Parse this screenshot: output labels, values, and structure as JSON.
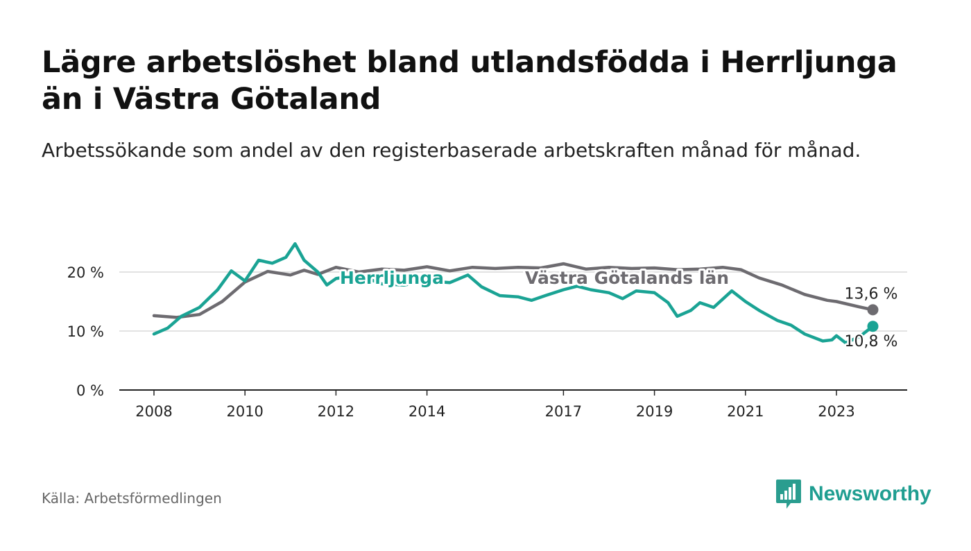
{
  "title": "Lägre arbetslöshet bland utlandsfödda i Herrljunga än i Västra Götaland",
  "subtitle": "Arbetssökande som andel av den registerbaserade arbetskraften månad för månad.",
  "source": "Källa: Arbetsförmedlingen",
  "brand": {
    "name": "Newsworthy",
    "icon": "newsworthy-logo-icon",
    "color": "#2a9d8f"
  },
  "colors": {
    "herrljunga": "#1aa394",
    "vastra": "#6d6b70",
    "grid": "#d9d9d9",
    "axis": "#222222"
  },
  "chart_data": {
    "type": "line",
    "title": "Lägre arbetslöshet bland utlandsfödda i Herrljunga än i Västra Götaland",
    "xlabel": "",
    "ylabel": "",
    "xlim": [
      2007.7,
      2025.2
    ],
    "ylim": [
      0,
      25
    ],
    "yticks": [
      0,
      10,
      20
    ],
    "ytick_labels": [
      "0 %",
      "10 %",
      "20 %"
    ],
    "xticks": [
      2008,
      2010,
      2012,
      2014,
      2017,
      2019,
      2021,
      2023
    ],
    "xtick_labels": [
      "2008",
      "2010",
      "2012",
      "2014",
      "2017",
      "2019",
      "2021",
      "2023"
    ],
    "grid": true,
    "series": [
      {
        "name": "Västra Götalands län",
        "label": "Västra Götalands län",
        "color": "#6d6b70",
        "end_label": "13,6 %",
        "points": [
          [
            2008.0,
            12.6
          ],
          [
            2008.5,
            12.3
          ],
          [
            2009.0,
            12.8
          ],
          [
            2009.5,
            15.0
          ],
          [
            2010.0,
            18.3
          ],
          [
            2010.5,
            20.1
          ],
          [
            2011.0,
            19.5
          ],
          [
            2011.3,
            20.3
          ],
          [
            2011.6,
            19.6
          ],
          [
            2012.0,
            20.8
          ],
          [
            2012.5,
            20.0
          ],
          [
            2013.0,
            20.5
          ],
          [
            2013.5,
            20.3
          ],
          [
            2014.0,
            20.9
          ],
          [
            2014.5,
            20.2
          ],
          [
            2015.0,
            20.8
          ],
          [
            2015.5,
            20.6
          ],
          [
            2016.0,
            20.8
          ],
          [
            2016.5,
            20.7
          ],
          [
            2017.0,
            21.4
          ],
          [
            2017.5,
            20.5
          ],
          [
            2018.0,
            20.8
          ],
          [
            2018.5,
            20.6
          ],
          [
            2019.0,
            20.7
          ],
          [
            2019.5,
            20.4
          ],
          [
            2020.0,
            20.5
          ],
          [
            2020.5,
            20.8
          ],
          [
            2020.9,
            20.4
          ],
          [
            2021.3,
            19.0
          ],
          [
            2021.8,
            17.8
          ],
          [
            2022.3,
            16.2
          ],
          [
            2022.8,
            15.2
          ],
          [
            2023.0,
            15.0
          ],
          [
            2023.5,
            14.1
          ],
          [
            2023.8,
            13.6
          ]
        ]
      },
      {
        "name": "Herrljunga",
        "label": "Herrljunga",
        "color": "#1aa394",
        "end_label": "10,8 %",
        "points": [
          [
            2008.0,
            9.5
          ],
          [
            2008.3,
            10.5
          ],
          [
            2008.6,
            12.5
          ],
          [
            2009.0,
            14.0
          ],
          [
            2009.4,
            17.0
          ],
          [
            2009.7,
            20.2
          ],
          [
            2010.0,
            18.5
          ],
          [
            2010.3,
            22.0
          ],
          [
            2010.6,
            21.5
          ],
          [
            2010.9,
            22.5
          ],
          [
            2011.1,
            24.8
          ],
          [
            2011.3,
            22.0
          ],
          [
            2011.6,
            20.0
          ],
          [
            2011.8,
            17.8
          ],
          [
            2012.0,
            18.9
          ],
          [
            2012.5,
            19.5
          ],
          [
            2013.0,
            18.0
          ],
          [
            2013.5,
            17.8
          ],
          [
            2014.0,
            18.5
          ],
          [
            2014.5,
            18.2
          ],
          [
            2014.9,
            19.5
          ],
          [
            2015.2,
            17.5
          ],
          [
            2015.6,
            16.0
          ],
          [
            2016.0,
            15.8
          ],
          [
            2016.3,
            15.2
          ],
          [
            2016.6,
            16.0
          ],
          [
            2017.0,
            17.0
          ],
          [
            2017.3,
            17.6
          ],
          [
            2017.6,
            17.0
          ],
          [
            2018.0,
            16.5
          ],
          [
            2018.3,
            15.5
          ],
          [
            2018.6,
            16.8
          ],
          [
            2019.0,
            16.5
          ],
          [
            2019.3,
            14.8
          ],
          [
            2019.5,
            12.5
          ],
          [
            2019.8,
            13.5
          ],
          [
            2020.0,
            14.8
          ],
          [
            2020.3,
            14.0
          ],
          [
            2020.7,
            16.8
          ],
          [
            2021.0,
            15.0
          ],
          [
            2021.3,
            13.5
          ],
          [
            2021.7,
            11.8
          ],
          [
            2022.0,
            11.0
          ],
          [
            2022.3,
            9.5
          ],
          [
            2022.7,
            8.3
          ],
          [
            2022.9,
            8.5
          ],
          [
            2023.0,
            9.2
          ],
          [
            2023.2,
            8.0
          ],
          [
            2023.5,
            9.0
          ],
          [
            2023.8,
            10.8
          ]
        ]
      }
    ]
  }
}
